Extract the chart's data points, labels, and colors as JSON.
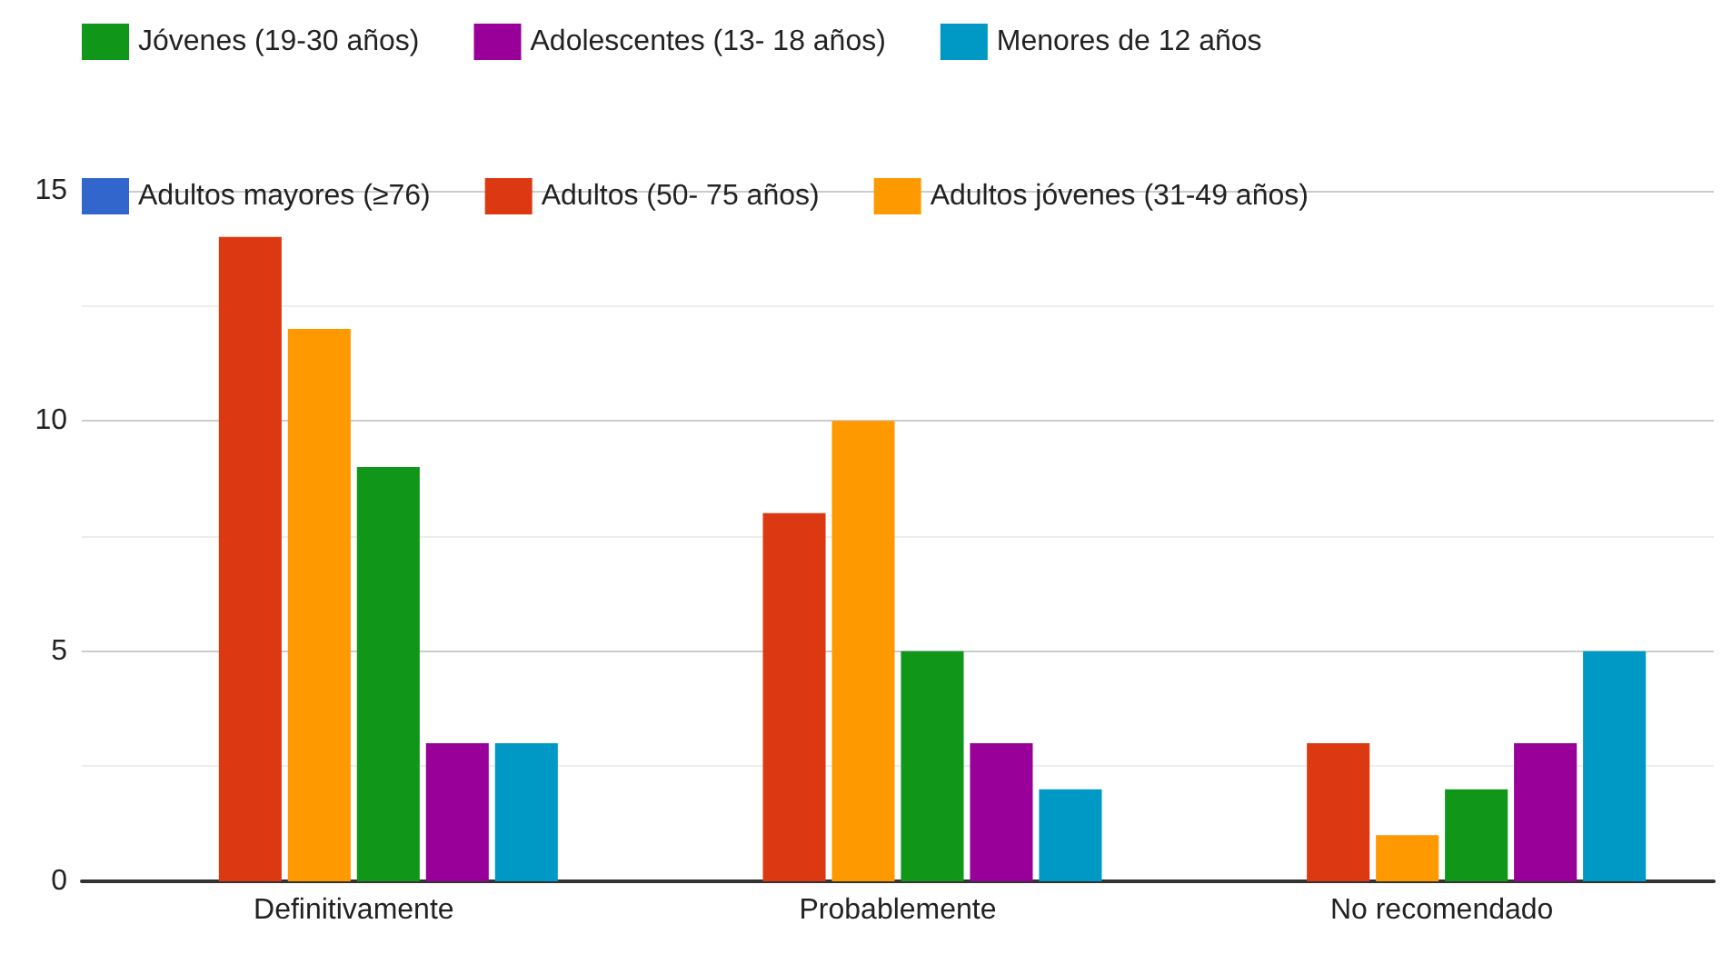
{
  "chart_data": {
    "type": "bar",
    "categories": [
      "Definitivamente",
      "Probablemente",
      "No recomendado"
    ],
    "series": [
      {
        "name": "Adultos mayores (≥76)",
        "color": "#3366cc",
        "values": [
          0,
          0,
          0
        ]
      },
      {
        "name": "Adultos (50- 75 años)",
        "color": "#dc3912",
        "values": [
          14,
          8,
          3
        ]
      },
      {
        "name": "Adultos jóvenes (31-49 años)",
        "color": "#ff9900",
        "values": [
          12,
          10,
          1
        ]
      },
      {
        "name": "Jóvenes (19-30 años)",
        "color": "#109618",
        "values": [
          9,
          5,
          2
        ]
      },
      {
        "name": "Adolescentes (13- 18 años)",
        "color": "#990099",
        "values": [
          3,
          3,
          3
        ]
      },
      {
        "name": "Menores de 12 años",
        "color": "#0099c6",
        "values": [
          3,
          2,
          5
        ]
      }
    ],
    "ylim": [
      0,
      15
    ],
    "yticks": [
      0,
      5,
      10,
      15
    ],
    "grid": "y",
    "legend": "top"
  }
}
